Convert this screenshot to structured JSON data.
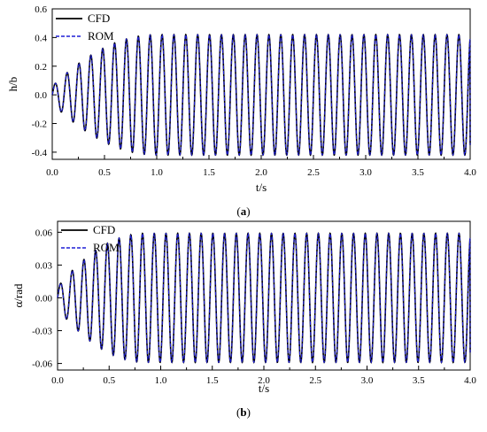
{
  "chart_data": [
    {
      "type": "line",
      "panel_label": "a",
      "xlabel": "t/s",
      "ylabel": "h/b",
      "xlim": [
        0,
        4.0
      ],
      "ylim": [
        -0.45,
        0.6
      ],
      "x_ticks": [
        "0.0",
        "0.5",
        "1.0",
        "1.5",
        "2.0",
        "2.5",
        "3.0",
        "3.5",
        "4.0"
      ],
      "y_ticks": [
        "-0.4",
        "-0.2",
        "0.0",
        "0.2",
        "0.4",
        "0.6"
      ],
      "legend_position": "top-left",
      "grid": false,
      "oscillation": {
        "frequency_hz": 8.8,
        "amplitude_limit": 0.42,
        "amplitude_start": 0.06,
        "growth_end_time": 1.0,
        "end_value": -0.35,
        "sample_points": [
          {
            "x": 0.05,
            "y": 0.06
          },
          {
            "x": 0.1,
            "y": -0.1
          },
          {
            "x": 0.3,
            "y": 0.18
          },
          {
            "x": 0.5,
            "y": -0.3
          },
          {
            "x": 0.75,
            "y": 0.38
          },
          {
            "x": 1.0,
            "y": 0.42
          },
          {
            "x": 2.0,
            "y": 0.42
          },
          {
            "x": 3.0,
            "y": -0.42
          },
          {
            "x": 4.0,
            "y": -0.35
          }
        ]
      },
      "series": [
        {
          "name": "CFD",
          "color": "#000000",
          "style": "solid"
        },
        {
          "name": "ROM",
          "color": "#1f1fd6",
          "style": "dashed"
        }
      ]
    },
    {
      "type": "line",
      "panel_label": "b",
      "xlabel": "t/s",
      "ylabel": "α/rad",
      "xlim": [
        0,
        4.0
      ],
      "ylim": [
        -0.066,
        0.07
      ],
      "x_ticks": [
        "0.0",
        "0.5",
        "1.0",
        "1.5",
        "2.0",
        "2.5",
        "3.0",
        "3.5",
        "4.0"
      ],
      "y_ticks": [
        "-0.06",
        "-0.03",
        "0.00",
        "0.03",
        "0.06"
      ],
      "legend_position": "top-left",
      "grid": false,
      "oscillation": {
        "frequency_hz": 8.8,
        "amplitude_limit": 0.059,
        "amplitude_start": 0.01,
        "growth_end_time": 0.85,
        "end_value": -0.05,
        "sample_points": [
          {
            "x": 0.05,
            "y": 0.01
          },
          {
            "x": 0.1,
            "y": -0.012
          },
          {
            "x": 0.3,
            "y": 0.028
          },
          {
            "x": 0.5,
            "y": -0.045
          },
          {
            "x": 0.75,
            "y": 0.056
          },
          {
            "x": 1.0,
            "y": 0.059
          },
          {
            "x": 2.0,
            "y": 0.059
          },
          {
            "x": 3.0,
            "y": -0.059
          },
          {
            "x": 4.0,
            "y": -0.05
          }
        ]
      },
      "series": [
        {
          "name": "CFD",
          "color": "#000000",
          "style": "solid"
        },
        {
          "name": "ROM",
          "color": "#1f1fd6",
          "style": "dashed"
        }
      ]
    }
  ]
}
